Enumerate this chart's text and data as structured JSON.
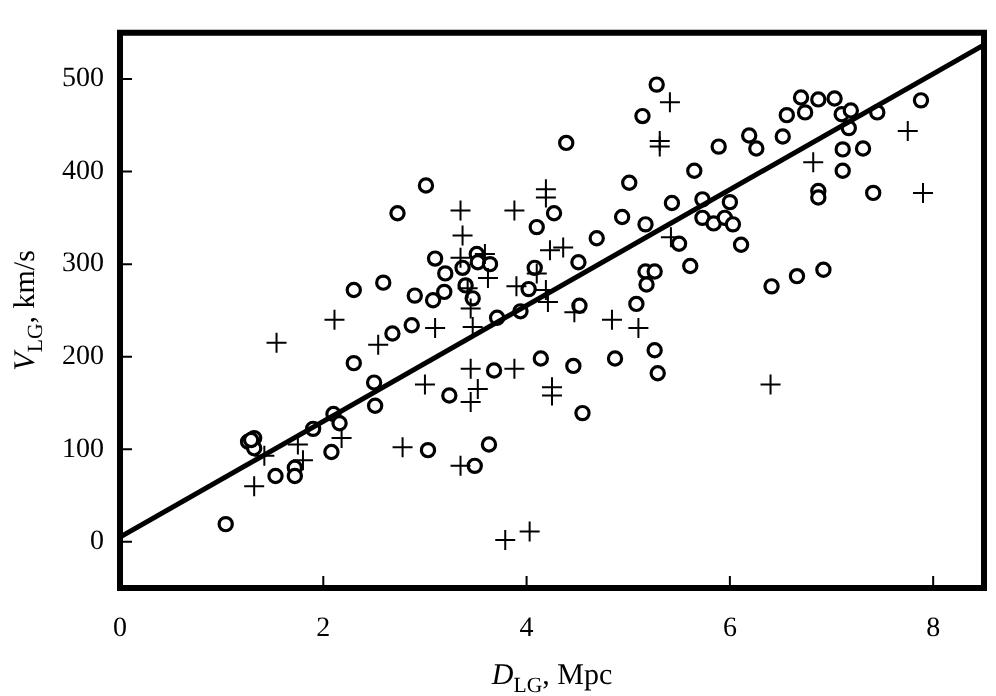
{
  "chart_data": {
    "type": "scatter",
    "xlabel": "D$_{LG}$, Mpc",
    "ylabel": "V$_{LG}$, km/s",
    "xlim": [
      0,
      8.5
    ],
    "ylim": [
      -50,
      550
    ],
    "xticks": [
      0,
      2,
      4,
      6,
      8
    ],
    "yticks": [
      0,
      100,
      200,
      300,
      400,
      500
    ],
    "grid": false,
    "legend": false,
    "series": [
      {
        "color": "#000000",
        "marker": "circle",
        "x": [
          1.04,
          1.26,
          1.32,
          1.32,
          1.53,
          1.72,
          1.72,
          1.9,
          2.08,
          2.1,
          2.16,
          2.3,
          2.3,
          2.5,
          2.51,
          2.73,
          2.9,
          3.01,
          3.03,
          3.08,
          3.1,
          3.19,
          3.2,
          3.24,
          3.37,
          3.4,
          3.47,
          3.49,
          3.51,
          3.52,
          3.64,
          3.68,
          3.71,
          3.94,
          4.02,
          4.08,
          4.1,
          4.14,
          4.27,
          4.39,
          4.46,
          4.52,
          4.55,
          4.69,
          4.87,
          5.01,
          5.08,
          5.14,
          5.17,
          5.17,
          5.18,
          5.26,
          5.26,
          5.29,
          5.28,
          5.43,
          5.5,
          5.61,
          5.65,
          5.73,
          5.73,
          5.84,
          5.89,
          5.95,
          6.0,
          6.11,
          6.26,
          6.41,
          6.52,
          6.56,
          6.66,
          6.7,
          6.74,
          6.87,
          6.87,
          6.87,
          6.92,
          7.03,
          7.1,
          7.11,
          7.11,
          7.17,
          7.19,
          7.31,
          7.45,
          7.88
        ],
        "values": [
          19,
          108,
          112,
          101,
          71,
          80,
          71,
          122,
          97,
          138,
          128,
          193,
          272,
          172,
          147,
          355,
          266,
          385,
          99,
          261,
          306,
          270,
          290,
          158,
          296,
          277,
          263,
          82,
          311,
          302,
          300,
          185,
          242,
          249,
          273,
          296,
          340,
          198,
          355,
          431,
          190,
          255,
          139,
          328,
          198,
          388,
          257,
          460,
          343,
          292,
          278,
          292,
          207,
          182,
          494,
          366,
          322,
          298,
          401,
          370,
          350,
          344,
          427,
          350,
          367,
          321,
          425,
          276,
          438,
          461,
          287,
          480,
          464,
          478,
          379,
          372,
          294,
          479,
          462,
          424,
          401,
          447,
          466,
          425,
          464,
          477
        ]
      },
      {
        "color": "#000000",
        "marker": "circle",
        "x": [
          1.29,
          2.59,
          2.68,
          2.87,
          3.63,
          4.51,
          4.94,
          6.03,
          6.19,
          7.41
        ],
        "values": [
          110,
          280,
          225,
          234,
          105,
          302,
          351,
          343,
          439,
          377
        ]
      },
      {
        "color": "#000000",
        "marker": "cross",
        "x": [
          1.32,
          1.42,
          1.54,
          1.75,
          1.8,
          2.11,
          2.18,
          2.54,
          2.78,
          3.0,
          3.1,
          3.35,
          3.37,
          3.35,
          3.42,
          3.35,
          3.45,
          3.45,
          3.45,
          3.47,
          3.52,
          3.59,
          3.62,
          3.79,
          3.88,
          3.88,
          3.9,
          4.03,
          4.1,
          4.19,
          4.19,
          4.19,
          4.21,
          4.23,
          4.25,
          4.25,
          4.36,
          4.47,
          4.84,
          5.1,
          5.31,
          5.31,
          5.41,
          5.42,
          6.4,
          6.82,
          7.75,
          7.9
        ],
        "values": [
          60,
          93,
          215,
          105,
          88,
          240,
          112,
          213,
          102,
          170,
          231,
          358,
          331,
          307,
          274,
          82,
          252,
          187,
          151,
          232,
          165,
          311,
          285,
          2,
          187,
          358,
          276,
          11,
          290,
          381,
          372,
          272,
          259,
          315,
          167,
          158,
          318,
          248,
          240,
          231,
          433,
          427,
          475,
          329,
          170,
          410,
          444,
          377
        ]
      },
      {
        "type": "line",
        "color": "#000000",
        "marker": "none",
        "x": [
          0,
          8.5
        ],
        "values": [
          5,
          537
        ]
      }
    ]
  }
}
